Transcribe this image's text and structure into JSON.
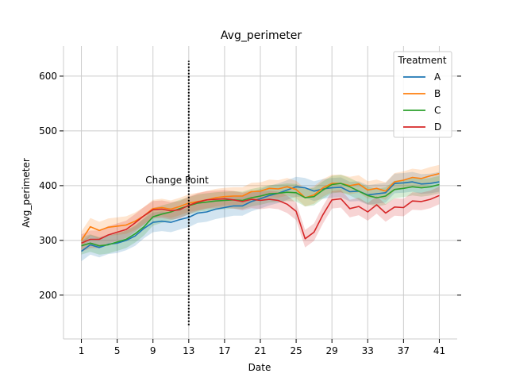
{
  "chart_data": {
    "type": "line",
    "title": "Avg_perimeter",
    "xlabel": "Date",
    "ylabel": "Avg_perimeter",
    "xlim": [
      -1,
      43
    ],
    "ylim": [
      120,
      655
    ],
    "xticks": [
      1,
      5,
      9,
      13,
      17,
      21,
      25,
      29,
      33,
      37,
      41
    ],
    "yticks": [
      200,
      300,
      400,
      500,
      600
    ],
    "grid": true,
    "legend": {
      "title": "Treatment",
      "position": "top-right"
    },
    "annotation": {
      "text": "Change Point",
      "x": 13,
      "y": 405,
      "line_x": 13,
      "line_y": [
        145,
        628
      ]
    },
    "x": [
      1,
      2,
      3,
      4,
      5,
      6,
      7,
      8,
      9,
      10,
      11,
      12,
      13,
      14,
      15,
      16,
      17,
      18,
      19,
      20,
      21,
      22,
      23,
      24,
      25,
      26,
      27,
      28,
      29,
      30,
      31,
      32,
      33,
      34,
      35,
      36,
      37,
      38,
      39,
      40,
      41
    ],
    "series": [
      {
        "name": "A",
        "color": "#1f77b4",
        "band": 18,
        "values": [
          280,
          292,
          287,
          293,
          295,
          300,
          308,
          322,
          333,
          335,
          333,
          338,
          342,
          350,
          352,
          357,
          360,
          363,
          363,
          371,
          376,
          382,
          386,
          392,
          398,
          396,
          390,
          394,
          396,
          397,
          389,
          390,
          383,
          385,
          387,
          404,
          405,
          407,
          403,
          404,
          407
        ]
      },
      {
        "name": "B",
        "color": "#ff7f0e",
        "band": 16,
        "values": [
          300,
          325,
          318,
          324,
          326,
          328,
          335,
          345,
          358,
          360,
          357,
          362,
          368,
          371,
          374,
          378,
          380,
          381,
          381,
          389,
          390,
          395,
          394,
          398,
          393,
          378,
          383,
          396,
          404,
          404,
          400,
          403,
          392,
          395,
          390,
          407,
          410,
          415,
          413,
          418,
          422
        ]
      },
      {
        "name": "C",
        "color": "#2ca02c",
        "band": 16,
        "values": [
          290,
          295,
          290,
          292,
          297,
          302,
          312,
          325,
          343,
          348,
          352,
          358,
          363,
          368,
          370,
          372,
          373,
          374,
          373,
          378,
          381,
          385,
          386,
          388,
          387,
          378,
          380,
          392,
          402,
          404,
          398,
          390,
          382,
          378,
          381,
          393,
          395,
          398,
          396,
          398,
          402
        ]
      },
      {
        "name": "D",
        "color": "#d62728",
        "band": 16,
        "values": [
          295,
          302,
          302,
          310,
          315,
          320,
          332,
          345,
          356,
          357,
          354,
          356,
          364,
          370,
          374,
          375,
          376,
          374,
          371,
          375,
          373,
          375,
          373,
          366,
          353,
          303,
          315,
          347,
          374,
          376,
          358,
          362,
          352,
          365,
          350,
          361,
          360,
          372,
          371,
          375,
          382
        ]
      }
    ]
  }
}
